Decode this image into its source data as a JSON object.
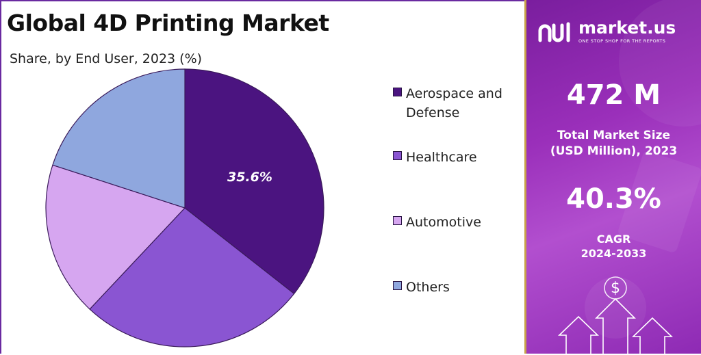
{
  "chart_data": {
    "type": "pie",
    "title": "Global 4D Printing Market",
    "subtitle": "Share, by End User, 2023 (%)",
    "slices": [
      {
        "label": "Aerospace and Defense",
        "value": 35.6,
        "color": "#4b1480",
        "data_label": "35.6%"
      },
      {
        "label": "Healthcare",
        "value": 26.4,
        "color": "#8a55d2",
        "data_label": ""
      },
      {
        "label": "Automotive",
        "value": 18.0,
        "color": "#d6a6f0",
        "data_label": ""
      },
      {
        "label": "Others",
        "value": 20.0,
        "color": "#8fa7de",
        "data_label": ""
      }
    ],
    "start_angle_deg": 0,
    "direction": "clockwise",
    "legend_position": "right"
  },
  "brand": {
    "name": "market.us",
    "tagline": "ONE STOP SHOP FOR THE REPORTS"
  },
  "stats": {
    "market_size_value": "472 M",
    "market_size_label_line1": "Total Market Size",
    "market_size_label_line2": "(USD Million), 2023",
    "cagr_value": "40.3%",
    "cagr_label_line1": "CAGR",
    "cagr_label_line2": "2024-2033"
  },
  "colors": {
    "panel_gradient_start": "#7a1e9e",
    "panel_gradient_end": "#b24fcf",
    "panel_border": "#c8a24a"
  }
}
